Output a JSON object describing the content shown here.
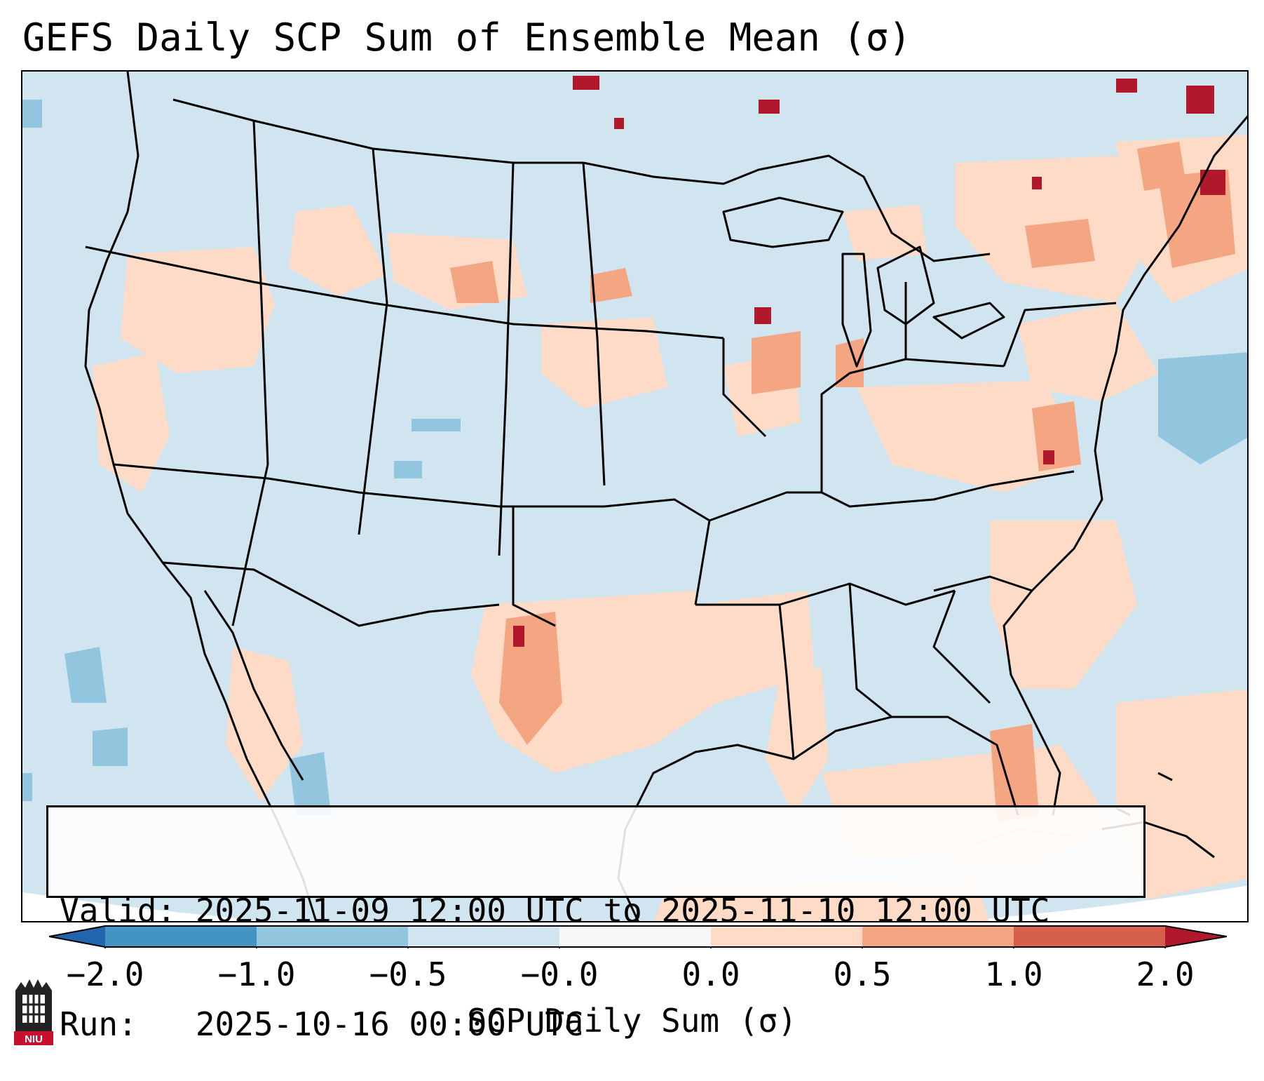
{
  "title": "GEFS Daily SCP Sum of Ensemble Mean (σ)",
  "info": {
    "valid": "Valid: 2025-11-09 12:00 UTC to 2025-11-10 12:00 UTC",
    "run": "Run:   2025-10-16 00:00 UTC"
  },
  "colorbar": {
    "label": "SCP Daily Sum (σ)",
    "ticks": [
      "−2.0",
      "−1.0",
      "−0.5",
      "−0.0",
      "0.0",
      "0.5",
      "1.0",
      "2.0"
    ],
    "colors": [
      "#4393c3",
      "#92c5de",
      "#d1e5f0",
      "#f7f7f7",
      "#fddbc7",
      "#f4a582",
      "#d6604d",
      "#b2182b"
    ],
    "extend_low_color": "#2166ac",
    "extend_high_color": "#b2182b"
  },
  "map": {
    "background_color": "#d1e5f0",
    "outline_color": "#000000"
  },
  "logo": {
    "text": "NIU",
    "color": "#c8102e"
  }
}
